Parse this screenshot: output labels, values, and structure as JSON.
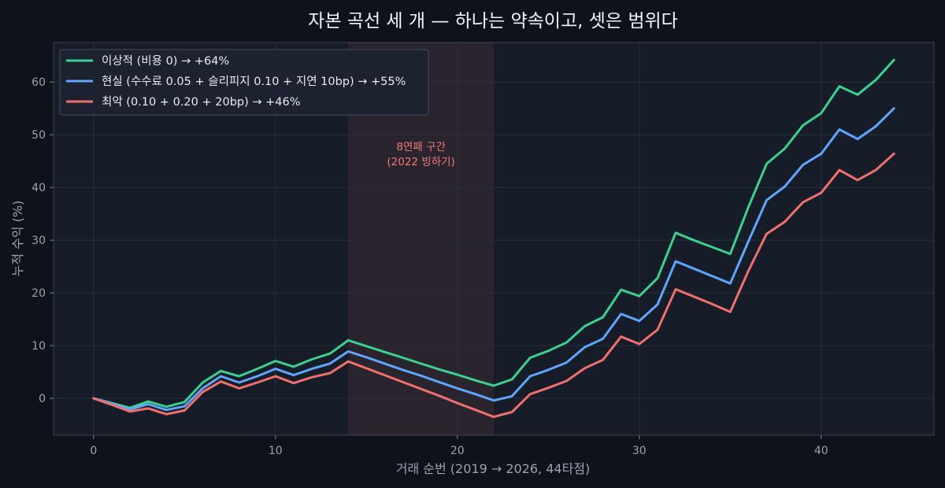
{
  "chart_data": {
    "type": "line",
    "title": "자본 곡선 세 개 — 하나는 약속이고, 셋은 범위다",
    "xlabel": "거래 순번 (2019 → 2026, 44타점)",
    "ylabel": "누적 수익 (%)",
    "xlim": [
      -2.2,
      46.2
    ],
    "ylim": [
      -7,
      67.5
    ],
    "xticks": [
      0,
      10,
      20,
      30,
      40
    ],
    "yticks": [
      0,
      10,
      20,
      30,
      40,
      50,
      60
    ],
    "grid": true,
    "legend_position": "top-left",
    "x": [
      0,
      1,
      2,
      3,
      4,
      5,
      6,
      7,
      8,
      9,
      10,
      11,
      12,
      13,
      14,
      15,
      16,
      17,
      18,
      19,
      20,
      21,
      22,
      23,
      24,
      25,
      26,
      27,
      28,
      29,
      30,
      31,
      32,
      33,
      34,
      35,
      36,
      37,
      38,
      39,
      40,
      41,
      42,
      43,
      44
    ],
    "series": [
      {
        "name": "이상적 (비용 0)  →  +64%",
        "color": "#3ecf8e",
        "values": [
          0,
          -0.9,
          -1.8,
          -0.6,
          -1.6,
          -0.7,
          3.0,
          5.2,
          4.2,
          5.6,
          7.1,
          6.0,
          7.4,
          8.5,
          11.0,
          9.9,
          8.8,
          7.7,
          6.6,
          5.5,
          4.5,
          3.4,
          2.4,
          3.6,
          7.7,
          9.0,
          10.6,
          13.7,
          15.4,
          20.6,
          19.4,
          22.8,
          31.4,
          30.0,
          28.7,
          27.4,
          36.3,
          44.5,
          47.4,
          51.8,
          54.1,
          59.2,
          57.6,
          60.4,
          64.2
        ]
      },
      {
        "name": "현실 (수수료 0.05 + 슬리피지 0.10 + 지연 10bp)  →  +55%",
        "color": "#60a5fa",
        "values": [
          0,
          -1.0,
          -2.1,
          -1.1,
          -2.2,
          -1.5,
          1.9,
          4.2,
          3.0,
          4.2,
          5.6,
          4.4,
          5.6,
          6.6,
          8.9,
          7.8,
          6.6,
          5.4,
          4.3,
          3.1,
          1.9,
          0.8,
          -0.4,
          0.4,
          4.2,
          5.4,
          6.8,
          9.7,
          11.3,
          16.0,
          14.7,
          17.8,
          26.0,
          24.6,
          23.2,
          21.8,
          29.8,
          37.6,
          40.2,
          44.3,
          46.4,
          51.0,
          49.2,
          51.6,
          55.0
        ]
      },
      {
        "name": "최악 (0.10 + 0.20 + 20bp)  →  +46%",
        "color": "#f07070",
        "values": [
          0,
          -1.2,
          -2.5,
          -1.9,
          -3.0,
          -2.3,
          1.2,
          3.2,
          1.9,
          3.0,
          4.2,
          2.9,
          4.0,
          4.8,
          7.0,
          5.7,
          4.4,
          3.1,
          1.8,
          0.5,
          -0.9,
          -2.2,
          -3.5,
          -2.6,
          0.8,
          2.0,
          3.3,
          5.7,
          7.3,
          11.7,
          10.3,
          13.0,
          20.7,
          19.3,
          17.9,
          16.4,
          24.2,
          31.2,
          33.5,
          37.2,
          39.0,
          43.3,
          41.4,
          43.3,
          46.4
        ]
      }
    ],
    "shaded_region": {
      "x_range": [
        14,
        22
      ],
      "color": "#f07070",
      "label_lines": [
        "8연패 구간",
        "(2022 빙하기)"
      ]
    }
  }
}
